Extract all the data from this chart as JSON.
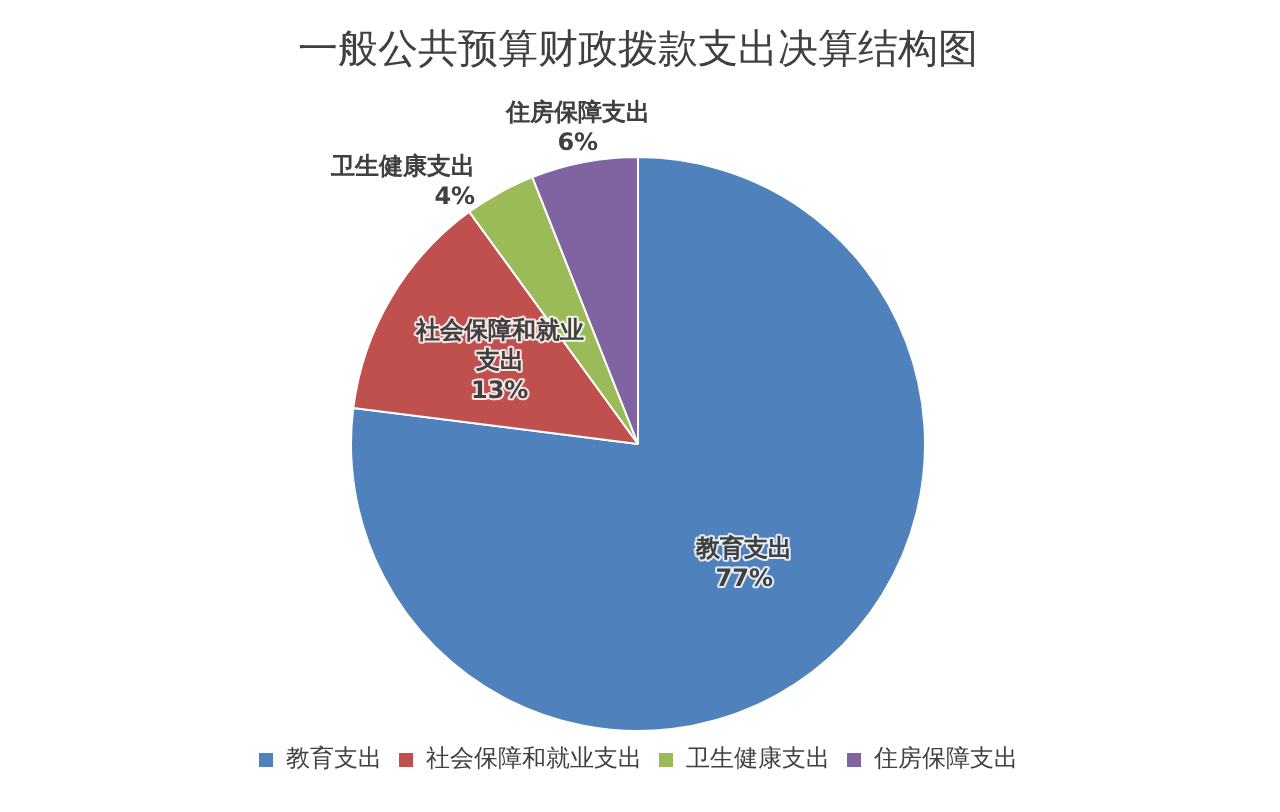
{
  "chart_data": {
    "type": "pie",
    "title": "一般公共预算财政拨款支出决算结构图",
    "categories": [
      "教育支出",
      "社会保障和就业支出",
      "卫生健康支出",
      "住房保障支出"
    ],
    "values": [
      77,
      13,
      4,
      6
    ],
    "colors": [
      "#4f81bd",
      "#c0504d",
      "#9bbb59",
      "#8064a2"
    ],
    "value_labels": [
      "77%",
      "13%",
      "4%",
      "6%"
    ],
    "legend": "bottom"
  }
}
